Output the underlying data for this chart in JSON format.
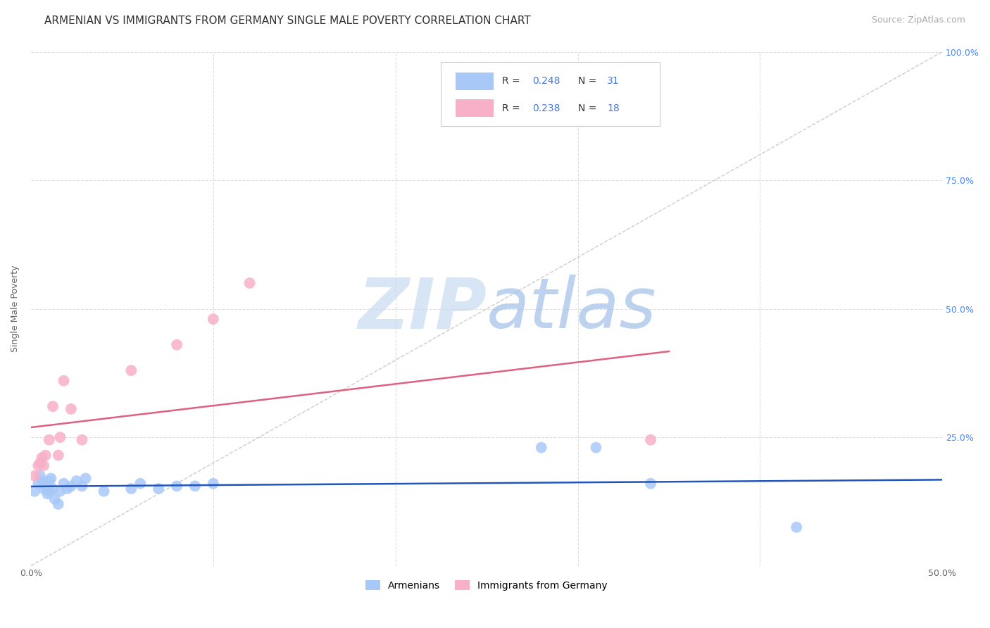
{
  "title": "ARMENIAN VS IMMIGRANTS FROM GERMANY SINGLE MALE POVERTY CORRELATION CHART",
  "source": "Source: ZipAtlas.com",
  "ylabel": "Single Male Poverty",
  "xlim": [
    0.0,
    0.5
  ],
  "ylim": [
    0.0,
    1.0
  ],
  "xticks": [
    0.0,
    0.1,
    0.2,
    0.3,
    0.4,
    0.5
  ],
  "xticklabels": [
    "0.0%",
    "",
    "",
    "",
    "",
    "50.0%"
  ],
  "yticks": [
    0.0,
    0.25,
    0.5,
    0.75,
    1.0
  ],
  "yticklabels_right": [
    "",
    "25.0%",
    "50.0%",
    "75.0%",
    "100.0%"
  ],
  "armenian_color": "#a8c8f8",
  "armenian_line_color": "#2255bb",
  "germany_color": "#f8b0c8",
  "germany_line_color": "#e06080",
  "diagonal_color": "#cccccc",
  "watermark_color": "#ccddf8",
  "background_color": "#ffffff",
  "grid_color": "#dddddd",
  "armenian_x": [
    0.002,
    0.004,
    0.005,
    0.006,
    0.007,
    0.008,
    0.009,
    0.01,
    0.01,
    0.011,
    0.012,
    0.013,
    0.015,
    0.016,
    0.018,
    0.02,
    0.022,
    0.025,
    0.028,
    0.03,
    0.04,
    0.055,
    0.06,
    0.07,
    0.08,
    0.09,
    0.1,
    0.28,
    0.31,
    0.34,
    0.42
  ],
  "armenian_y": [
    0.145,
    0.16,
    0.175,
    0.165,
    0.15,
    0.155,
    0.14,
    0.145,
    0.165,
    0.17,
    0.15,
    0.13,
    0.12,
    0.145,
    0.16,
    0.15,
    0.155,
    0.165,
    0.155,
    0.17,
    0.145,
    0.15,
    0.16,
    0.15,
    0.155,
    0.155,
    0.16,
    0.23,
    0.23,
    0.16,
    0.075
  ],
  "germany_x": [
    0.002,
    0.004,
    0.005,
    0.006,
    0.007,
    0.008,
    0.01,
    0.012,
    0.015,
    0.016,
    0.018,
    0.022,
    0.028,
    0.055,
    0.08,
    0.1,
    0.12,
    0.34
  ],
  "germany_y": [
    0.175,
    0.195,
    0.2,
    0.21,
    0.195,
    0.215,
    0.245,
    0.31,
    0.215,
    0.25,
    0.36,
    0.305,
    0.245,
    0.38,
    0.43,
    0.48,
    0.55,
    0.245
  ],
  "title_fontsize": 11,
  "axis_label_fontsize": 9,
  "tick_fontsize": 9,
  "source_fontsize": 9
}
